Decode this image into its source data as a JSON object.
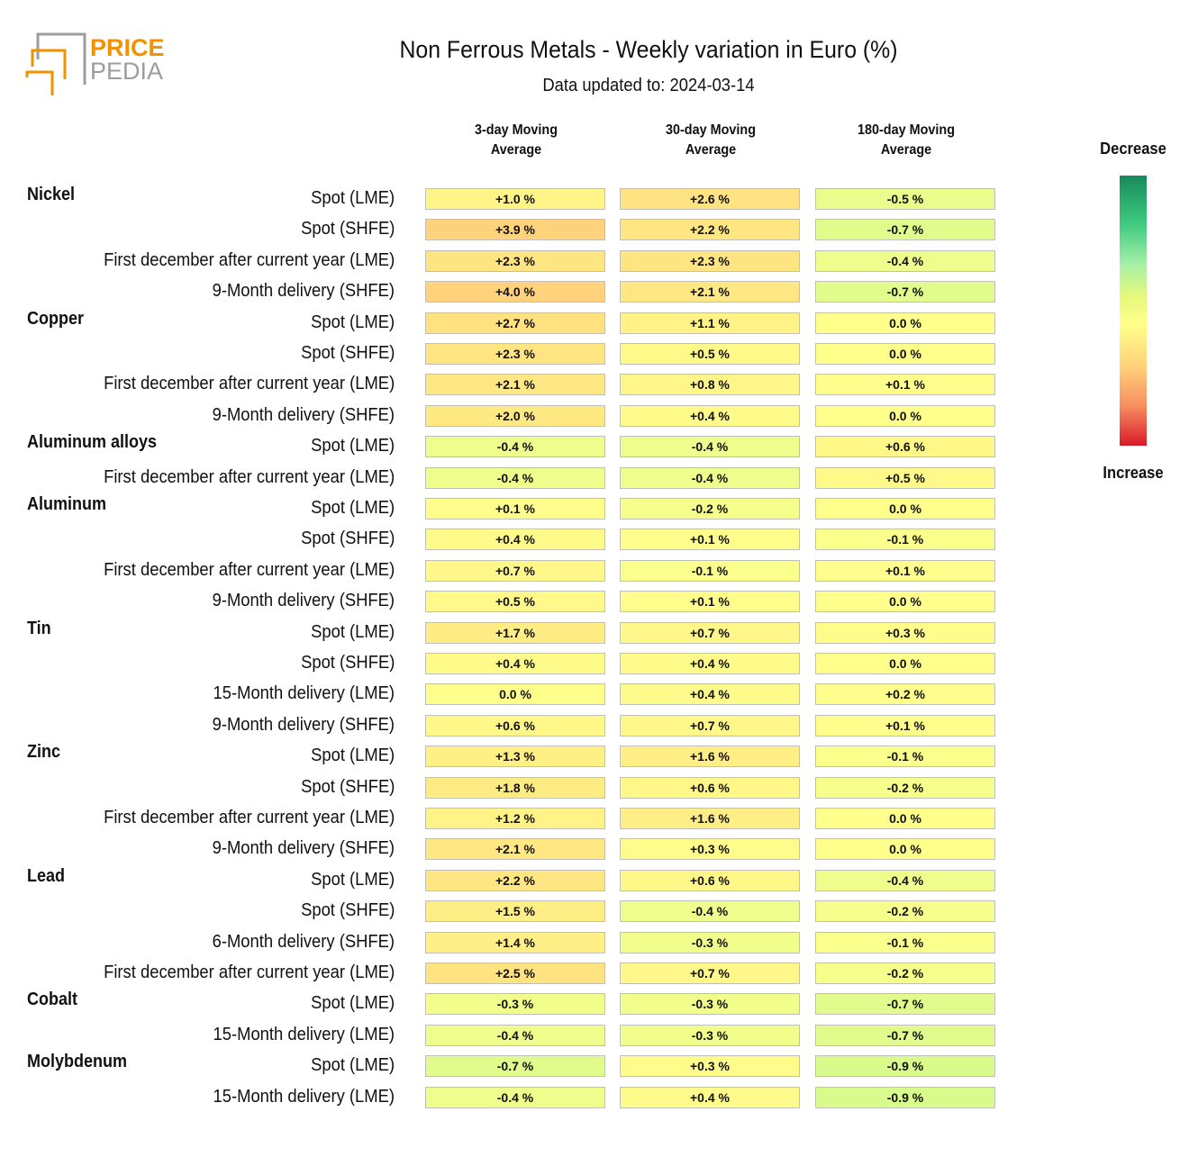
{
  "header": {
    "title": "Non Ferrous Metals - Weekly variation in Euro (%)",
    "subtitle": "Data updated to: 2024-03-14",
    "logo_text": [
      "PRICE",
      "PEDIA"
    ]
  },
  "legend": {
    "top_label": "Decrease",
    "bottom_label": "Increase"
  },
  "colors": {
    "logo_orange": "#f39200",
    "logo_gray": "#9d9d9c"
  },
  "chart_data": {
    "type": "heatmap",
    "title": "Non Ferrous Metals - Weekly variation in Euro (%)",
    "columns": [
      {
        "line1": "3-day Moving",
        "line2": "Average"
      },
      {
        "line1": "30-day Moving",
        "line2": "Average"
      },
      {
        "line1": "180-day Moving",
        "line2": "Average"
      }
    ],
    "unit": "%",
    "groups": [
      {
        "name": "Nickel",
        "rows": [
          {
            "label": "Spot (LME)",
            "values": [
              1.0,
              2.6,
              -0.5
            ]
          },
          {
            "label": "Spot (SHFE)",
            "values": [
              3.9,
              2.2,
              -0.7
            ]
          },
          {
            "label": "First december after current year (LME)",
            "values": [
              2.3,
              2.3,
              -0.4
            ]
          },
          {
            "label": "9-Month delivery (SHFE)",
            "values": [
              4.0,
              2.1,
              -0.7
            ]
          }
        ]
      },
      {
        "name": "Copper",
        "rows": [
          {
            "label": "Spot (LME)",
            "values": [
              2.7,
              1.1,
              0.0
            ]
          },
          {
            "label": "Spot (SHFE)",
            "values": [
              2.3,
              0.5,
              0.0
            ]
          },
          {
            "label": "First december after current year (LME)",
            "values": [
              2.1,
              0.8,
              0.1
            ]
          },
          {
            "label": "9-Month delivery (SHFE)",
            "values": [
              2.0,
              0.4,
              0.0
            ]
          }
        ]
      },
      {
        "name": "Aluminum alloys",
        "rows": [
          {
            "label": "Spot (LME)",
            "values": [
              -0.4,
              -0.4,
              0.6
            ]
          },
          {
            "label": "First december after current year (LME)",
            "values": [
              -0.4,
              -0.4,
              0.5
            ]
          }
        ]
      },
      {
        "name": "Aluminum",
        "rows": [
          {
            "label": "Spot (LME)",
            "values": [
              0.1,
              -0.2,
              0.0
            ]
          },
          {
            "label": "Spot (SHFE)",
            "values": [
              0.4,
              0.1,
              -0.1
            ]
          },
          {
            "label": "First december after current year (LME)",
            "values": [
              0.7,
              -0.1,
              0.1
            ]
          },
          {
            "label": "9-Month delivery (SHFE)",
            "values": [
              0.5,
              0.1,
              0.0
            ]
          }
        ]
      },
      {
        "name": "Tin",
        "rows": [
          {
            "label": "Spot (LME)",
            "values": [
              1.7,
              0.7,
              0.3
            ]
          },
          {
            "label": "Spot (SHFE)",
            "values": [
              0.4,
              0.4,
              0.0
            ]
          },
          {
            "label": "15-Month delivery (LME)",
            "values": [
              0.0,
              0.4,
              0.2
            ]
          },
          {
            "label": "9-Month delivery (SHFE)",
            "values": [
              0.6,
              0.7,
              0.1
            ]
          }
        ]
      },
      {
        "name": "Zinc",
        "rows": [
          {
            "label": "Spot (LME)",
            "values": [
              1.3,
              1.6,
              -0.1
            ]
          },
          {
            "label": "Spot (SHFE)",
            "values": [
              1.8,
              0.6,
              -0.2
            ]
          },
          {
            "label": "First december after current year (LME)",
            "values": [
              1.2,
              1.6,
              0.0
            ]
          },
          {
            "label": "9-Month delivery (SHFE)",
            "values": [
              2.1,
              0.3,
              0.0
            ]
          }
        ]
      },
      {
        "name": "Lead",
        "rows": [
          {
            "label": "Spot (LME)",
            "values": [
              2.2,
              0.6,
              -0.4
            ]
          },
          {
            "label": "Spot (SHFE)",
            "values": [
              1.5,
              -0.4,
              -0.2
            ]
          },
          {
            "label": "6-Month delivery (SHFE)",
            "values": [
              1.4,
              -0.3,
              -0.1
            ]
          },
          {
            "label": "First december after current year (LME)",
            "values": [
              2.5,
              0.7,
              -0.2
            ]
          }
        ]
      },
      {
        "name": "Cobalt",
        "rows": [
          {
            "label": "Spot (LME)",
            "values": [
              -0.3,
              -0.3,
              -0.7
            ]
          },
          {
            "label": "15-Month delivery (LME)",
            "values": [
              -0.4,
              -0.3,
              -0.7
            ]
          }
        ]
      },
      {
        "name": "Molybdenum",
        "rows": [
          {
            "label": "Spot (LME)",
            "values": [
              -0.7,
              0.3,
              -0.9
            ]
          },
          {
            "label": "15-Month delivery (LME)",
            "values": [
              -0.4,
              0.4,
              -0.9
            ]
          }
        ]
      }
    ]
  }
}
